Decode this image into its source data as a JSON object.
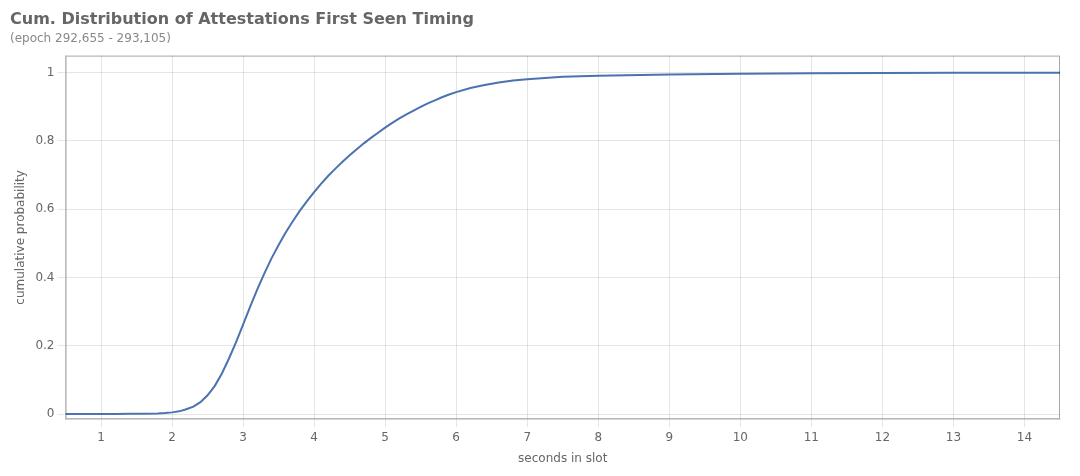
{
  "chart_data": {
    "type": "line",
    "title": "Cum. Distribution of Attestations First Seen Timing",
    "subtitle": "(epoch 292,655 - 293,105)",
    "xlabel": "seconds in slot",
    "ylabel": "cumulative probability",
    "x": [
      0.5,
      0.8,
      1.0,
      1.2,
      1.4,
      1.6,
      1.8,
      1.9,
      2.0,
      2.1,
      2.2,
      2.3,
      2.4,
      2.5,
      2.6,
      2.7,
      2.8,
      2.9,
      3.0,
      3.1,
      3.2,
      3.3,
      3.4,
      3.5,
      3.6,
      3.7,
      3.8,
      3.9,
      4.0,
      4.1,
      4.2,
      4.3,
      4.4,
      4.5,
      4.6,
      4.7,
      4.8,
      4.9,
      5.0,
      5.1,
      5.2,
      5.3,
      5.4,
      5.5,
      5.6,
      5.7,
      5.8,
      5.9,
      6.0,
      6.2,
      6.4,
      6.6,
      6.8,
      7.0,
      7.5,
      8.0,
      9.0,
      10.0,
      11.0,
      12.0,
      13.0,
      14.0,
      14.5
    ],
    "values": [
      0.0,
      0.0,
      0.0,
      0.0,
      0.001,
      0.001,
      0.002,
      0.003,
      0.005,
      0.008,
      0.014,
      0.022,
      0.035,
      0.055,
      0.082,
      0.118,
      0.162,
      0.21,
      0.262,
      0.315,
      0.365,
      0.412,
      0.456,
      0.495,
      0.532,
      0.565,
      0.596,
      0.624,
      0.65,
      0.675,
      0.698,
      0.719,
      0.739,
      0.758,
      0.776,
      0.793,
      0.809,
      0.824,
      0.839,
      0.853,
      0.866,
      0.878,
      0.889,
      0.9,
      0.91,
      0.919,
      0.928,
      0.936,
      0.943,
      0.955,
      0.964,
      0.971,
      0.977,
      0.981,
      0.988,
      0.991,
      0.995,
      0.997,
      0.998,
      0.999,
      0.9995,
      1.0,
      1.0
    ],
    "color": "#4C72B0",
    "xlim": [
      0.5,
      14.5
    ],
    "ylim": [
      -0.015,
      1.05
    ],
    "xticks": [
      1,
      2,
      3,
      4,
      5,
      6,
      7,
      8,
      9,
      10,
      11,
      12,
      13,
      14
    ],
    "yticks": [
      0,
      0.2,
      0.4,
      0.6,
      0.8,
      1
    ],
    "grid": true
  }
}
